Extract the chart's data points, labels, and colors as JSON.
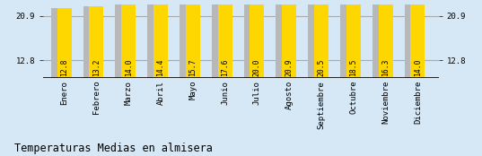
{
  "months": [
    "Enero",
    "Febrero",
    "Marzo",
    "Abril",
    "Mayo",
    "Junio",
    "Julio",
    "Agosto",
    "Septiembre",
    "Octubre",
    "Noviembre",
    "Diciembre"
  ],
  "values": [
    12.8,
    13.2,
    14.0,
    14.4,
    15.7,
    17.6,
    20.0,
    20.9,
    20.5,
    18.5,
    16.3,
    14.0
  ],
  "bar_color_main": "#FFD700",
  "bar_color_shadow": "#B8B8B8",
  "background_color": "#D6E8F5",
  "title": "Temperaturas Medias en almisera",
  "ylim": [
    9.5,
    23.0
  ],
  "yticks": [
    12.8,
    20.9
  ],
  "hline_values": [
    12.8,
    20.9
  ],
  "title_fontsize": 8.5,
  "tick_fontsize": 6.5,
  "bar_label_fontsize": 5.8
}
